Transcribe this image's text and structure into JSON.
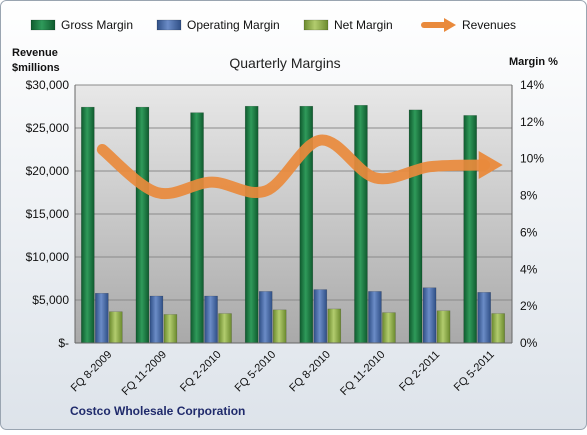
{
  "chart_data": {
    "type": "bar",
    "title": "Quarterly Margins",
    "company": "Costco Wholesale Corporation",
    "left_axis": {
      "label_line1": "Revenue",
      "label_line2": "$millions",
      "min": 0,
      "max": 30000,
      "ticks": [
        0,
        5000,
        10000,
        15000,
        20000,
        25000,
        30000
      ],
      "tick_labels": [
        "$-",
        "$5,000",
        "$10,000",
        "$15,000",
        "$20,000",
        "$25,000",
        "$30,000"
      ]
    },
    "right_axis": {
      "label": "Margin %",
      "min": 0,
      "max": 14,
      "ticks": [
        0,
        2,
        4,
        6,
        8,
        10,
        12,
        14
      ],
      "tick_labels": [
        "0%",
        "2%",
        "4%",
        "6%",
        "8%",
        "10%",
        "12%",
        "14%"
      ]
    },
    "categories": [
      "FQ 8-2009",
      "FQ 11-2009",
      "FQ 2-2010",
      "FQ 5-2010",
      "FQ 8-2010",
      "FQ 11-2010",
      "FQ 2-2011",
      "FQ 5-2011"
    ],
    "series": [
      {
        "name": "Gross Margin",
        "type": "bar",
        "axis": "right",
        "color": "#1e7a45",
        "values": [
          12.8,
          12.8,
          12.5,
          12.85,
          12.85,
          12.9,
          12.65,
          12.35
        ]
      },
      {
        "name": "Operating Margin",
        "type": "bar",
        "axis": "right",
        "color": "#4a6fad",
        "values": [
          2.7,
          2.55,
          2.55,
          2.8,
          2.9,
          2.8,
          3.0,
          2.75
        ]
      },
      {
        "name": "Net Margin",
        "type": "bar",
        "axis": "right",
        "color": "#8fad4d",
        "values": [
          1.7,
          1.55,
          1.6,
          1.8,
          1.85,
          1.65,
          1.75,
          1.6
        ]
      },
      {
        "name": "Revenues",
        "type": "line",
        "axis": "left",
        "color": "#e98a3c",
        "values": [
          22500,
          17500,
          18700,
          17700,
          23600,
          19200,
          20500,
          20700
        ]
      }
    ],
    "grid": true,
    "legend": "top"
  }
}
